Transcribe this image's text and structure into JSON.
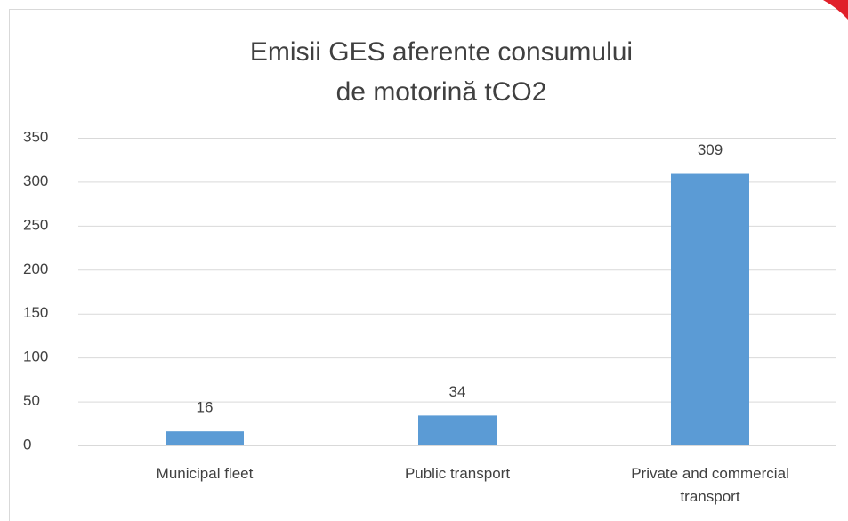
{
  "chart_data": {
    "type": "bar",
    "title": [
      "Emisii GES aferente consumului",
      "de motorină tCO2"
    ],
    "categories": [
      "Municipal fleet",
      "Public transport",
      "Private and commercial transport"
    ],
    "values": [
      16,
      34,
      309
    ],
    "color": "#5b9bd5",
    "ylim": [
      0,
      350
    ],
    "yticks": [
      0,
      50,
      100,
      150,
      200,
      250,
      300,
      350
    ],
    "grid": true
  }
}
